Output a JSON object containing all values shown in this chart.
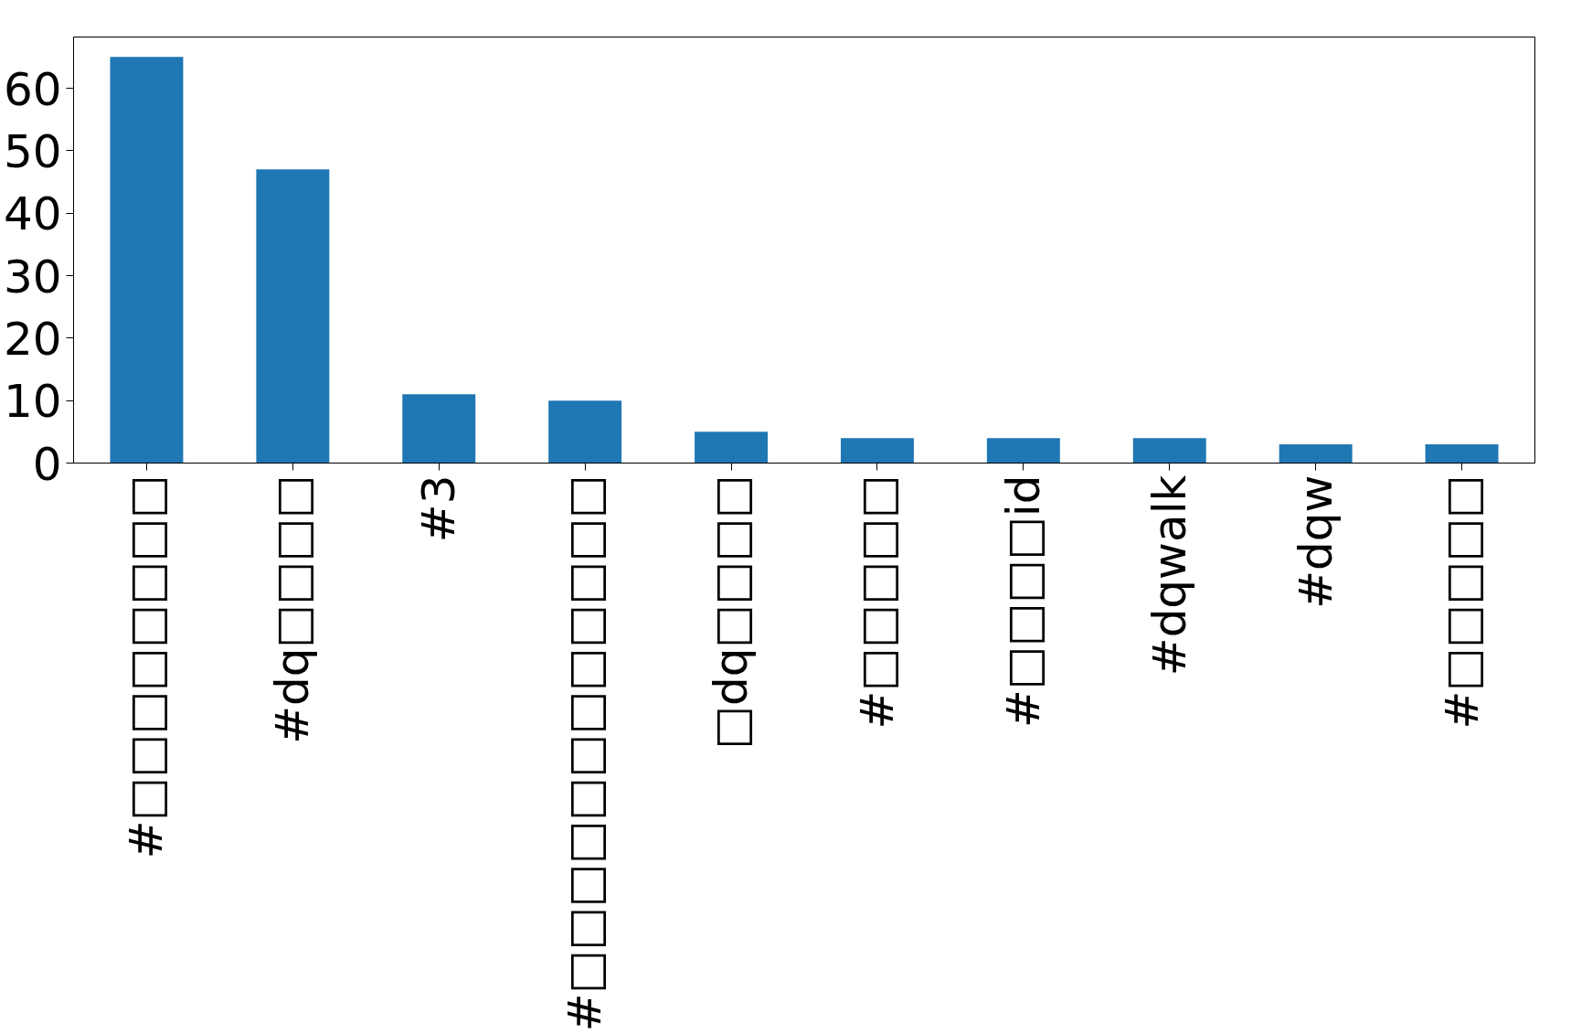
{
  "chart_data": {
    "type": "bar",
    "categories": [
      "#□□□□□□□□",
      "#dq□□□□",
      "#3",
      "#□□□□□□□□□□□□",
      "□dq□□□□",
      "#□□□□□",
      "#□□□□id",
      "#dqwalk",
      "#dqw",
      "#□□□□□"
    ],
    "values": [
      65,
      47,
      11,
      10,
      5,
      4,
      4,
      4,
      3,
      3
    ],
    "color": "#1f77b4",
    "ylim": [
      0,
      68.2
    ],
    "yticks": [
      0,
      10,
      20,
      30,
      40,
      50,
      60
    ],
    "grid": false
  }
}
